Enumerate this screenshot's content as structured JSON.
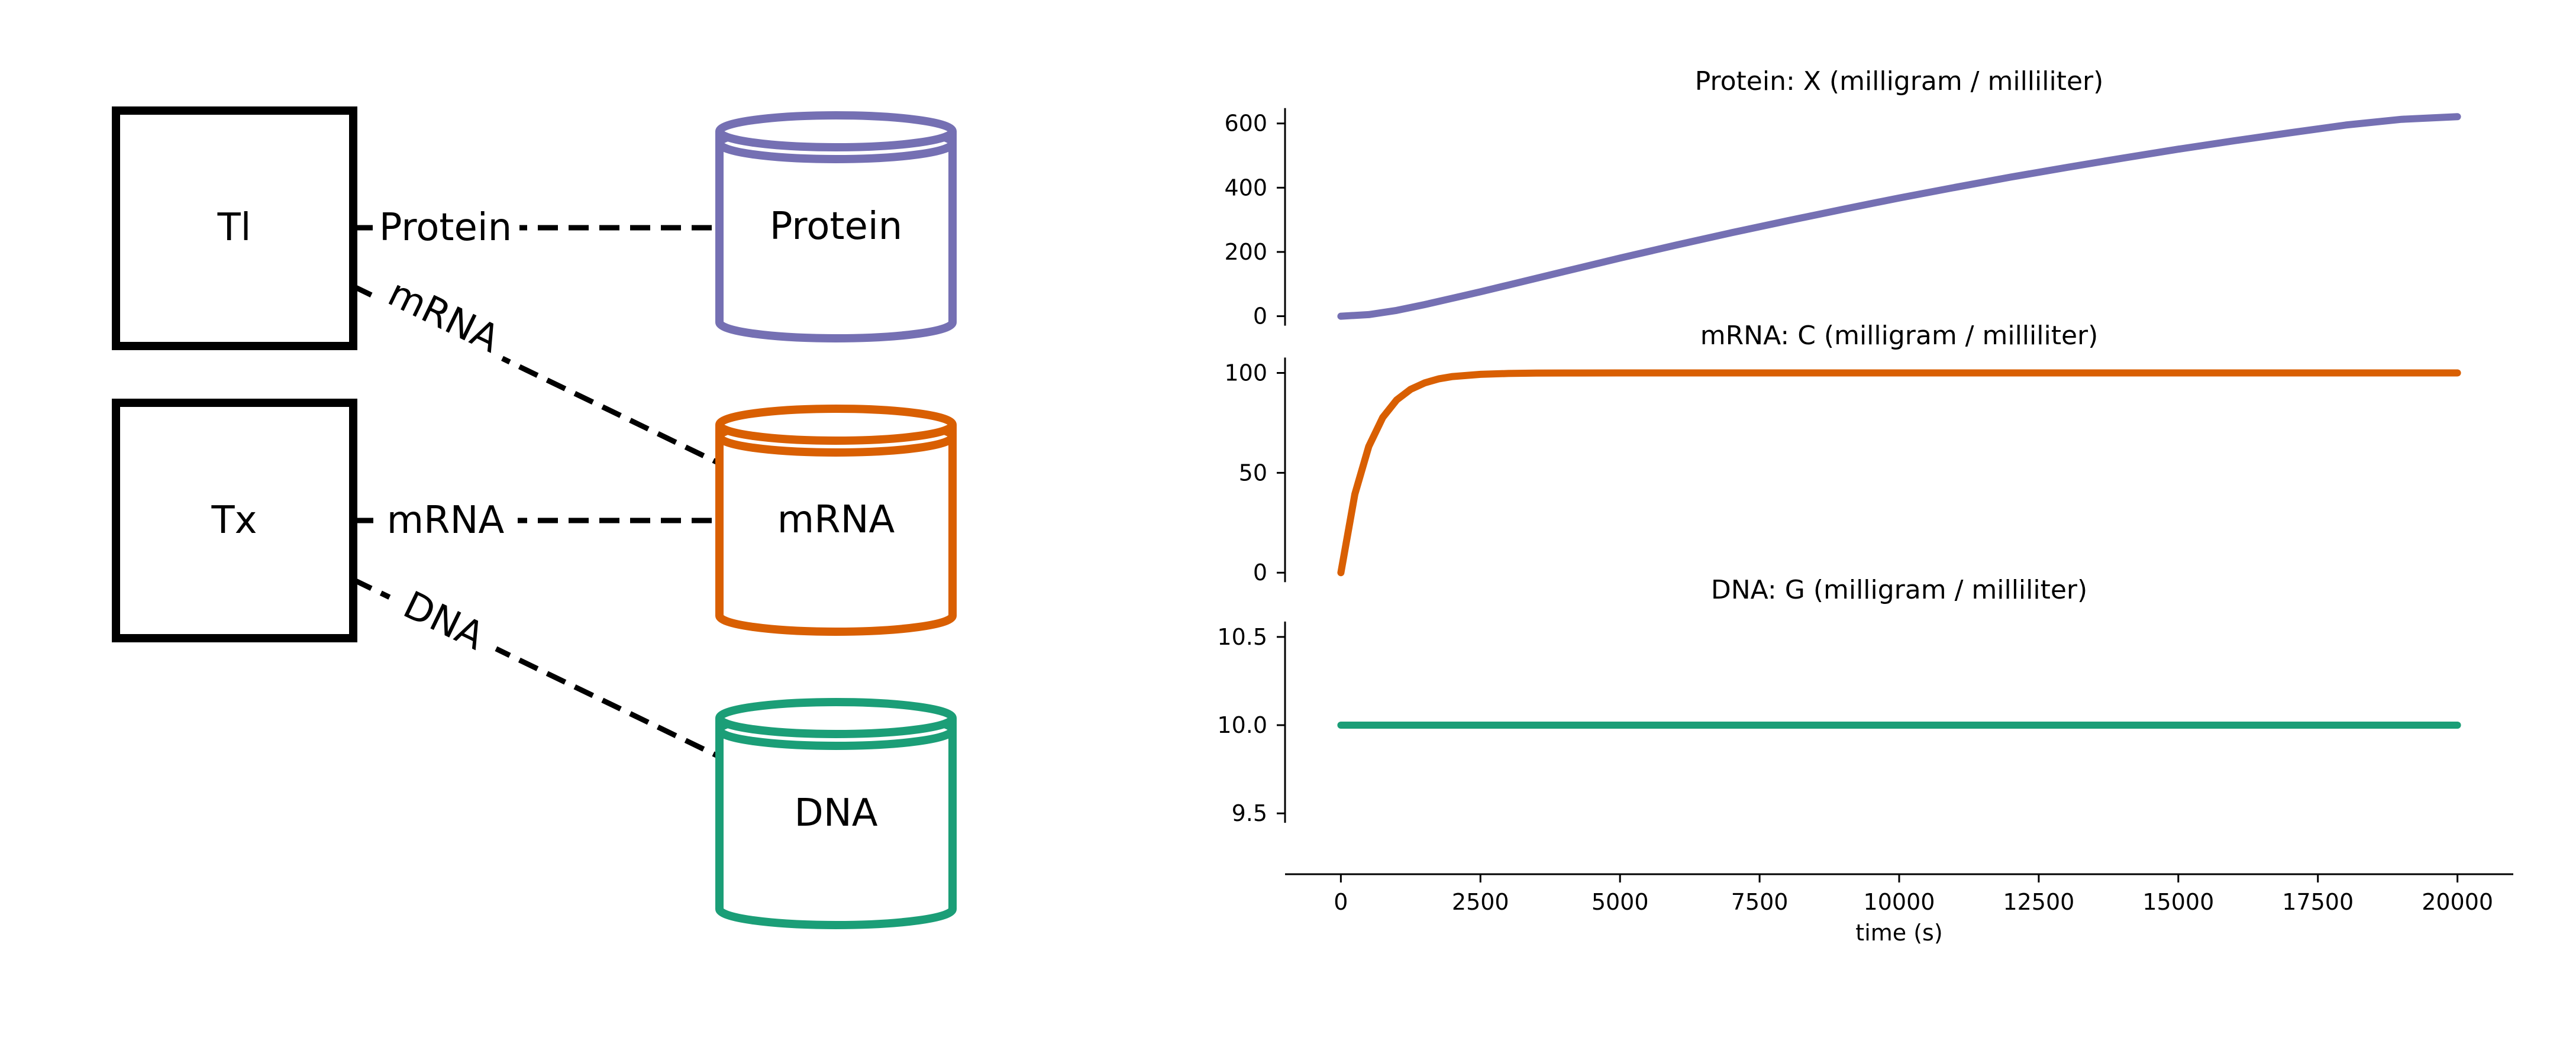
{
  "diagram": {
    "processes": [
      {
        "id": "tl",
        "label": "Tl"
      },
      {
        "id": "tx",
        "label": "Tx"
      }
    ],
    "stores": [
      {
        "id": "protein",
        "label": "Protein",
        "color": "#7570b3"
      },
      {
        "id": "mrna",
        "label": "mRNA",
        "color": "#d95f02"
      },
      {
        "id": "dna",
        "label": "DNA",
        "color": "#1b9e77"
      }
    ],
    "edges": [
      {
        "from": "tl",
        "to": "protein",
        "label": "Protein"
      },
      {
        "from": "tl",
        "to": "mrna",
        "label": "mRNA"
      },
      {
        "from": "tx",
        "to": "mrna",
        "label": "mRNA"
      },
      {
        "from": "tx",
        "to": "dna",
        "label": "DNA"
      }
    ]
  },
  "chart_data": [
    {
      "type": "line",
      "title": "Protein: X (milligram / milliliter)",
      "color": "#7570b3",
      "xlim": [
        -1000,
        21000
      ],
      "ylim": [
        -10,
        640
      ],
      "yticks": [
        0,
        200,
        400,
        600
      ],
      "ytick_labels": [
        "0",
        "200",
        "400",
        "600"
      ],
      "series": [
        {
          "x": [
            0,
            500,
            1000,
            1500,
            2000,
            2500,
            3000,
            4000,
            5000,
            6000,
            7000,
            8000,
            9000,
            10000,
            11000,
            12000,
            13000,
            14000,
            15000,
            16000,
            17000,
            18000,
            19000,
            20000
          ],
          "values": [
            0,
            5,
            18,
            36,
            56,
            76,
            97,
            139,
            181,
            221,
            260,
            297,
            333,
            368,
            401,
            433,
            463,
            492,
            520,
            546,
            571,
            595,
            613,
            621
          ]
        }
      ]
    },
    {
      "type": "line",
      "title": "mRNA: C (milligram / milliliter)",
      "color": "#d95f02",
      "xlim": [
        -1000,
        21000
      ],
      "ylim": [
        -2,
        104
      ],
      "yticks": [
        0,
        50,
        100
      ],
      "ytick_labels": [
        "0",
        "50",
        "100"
      ],
      "series": [
        {
          "x": [
            0,
            250,
            500,
            750,
            1000,
            1250,
            1500,
            1750,
            2000,
            2500,
            3000,
            3500,
            4000,
            5000,
            6000,
            7000,
            8000,
            10000,
            12000,
            14000,
            16000,
            18000,
            20000
          ],
          "values": [
            0,
            39.3,
            63.2,
            77.7,
            86.5,
            91.8,
            95.0,
            97.0,
            98.2,
            99.3,
            99.75,
            99.9,
            99.97,
            100,
            100,
            100,
            100,
            100,
            100,
            100,
            100,
            100,
            100
          ]
        }
      ]
    },
    {
      "type": "line",
      "title": "DNA: G (milligram / milliliter)",
      "color": "#1b9e77",
      "xlim": [
        -1000,
        21000
      ],
      "ylim": [
        9.4,
        10.6
      ],
      "yticks": [
        9.5,
        10.0,
        10.5
      ],
      "ytick_labels": [
        "9.5",
        "10.0",
        "10.5"
      ],
      "xticks": [
        0,
        2500,
        5000,
        7500,
        10000,
        12500,
        15000,
        17500,
        20000
      ],
      "xtick_labels": [
        "0",
        "2500",
        "5000",
        "7500",
        "10000",
        "12500",
        "15000",
        "17500",
        "20000"
      ],
      "xlabel": "time (s)",
      "series": [
        {
          "x": [
            0,
            20000
          ],
          "values": [
            10.0,
            10.0
          ]
        }
      ]
    }
  ]
}
